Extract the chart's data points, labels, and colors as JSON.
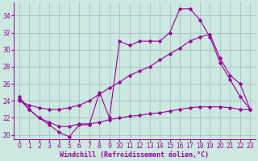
{
  "xlabel": "Windchill (Refroidissement éolien,°C)",
  "background_color": "#cce8e0",
  "line_color": "#990099",
  "grid_color": "#99bbbb",
  "xlim": [
    -0.5,
    23.5
  ],
  "ylim": [
    19.5,
    35.5
  ],
  "yticks": [
    20,
    22,
    24,
    26,
    28,
    30,
    32,
    34
  ],
  "xticks": [
    0,
    1,
    2,
    3,
    4,
    5,
    6,
    7,
    8,
    9,
    10,
    11,
    12,
    13,
    14,
    15,
    16,
    17,
    18,
    19,
    20,
    21,
    22,
    23
  ],
  "y_top": [
    24.5,
    23.0,
    22.0,
    21.2,
    20.3,
    19.8,
    21.2,
    21.2,
    25.0,
    22.0,
    31.0,
    30.5,
    31.0,
    31.0,
    31.0,
    32.0,
    34.8,
    34.8,
    33.5,
    31.5,
    28.5,
    26.5,
    24.5,
    23.0
  ],
  "y_mid": [
    24.0,
    23.5,
    23.2,
    23.0,
    23.0,
    23.2,
    23.5,
    24.0,
    24.8,
    25.5,
    26.2,
    27.0,
    27.5,
    28.0,
    28.8,
    29.5,
    30.2,
    31.0,
    31.5,
    31.8,
    29.0,
    27.0,
    26.0,
    23.0
  ],
  "y_bot": [
    24.2,
    23.0,
    22.0,
    21.5,
    21.0,
    21.0,
    21.3,
    21.3,
    21.5,
    21.8,
    22.0,
    22.2,
    22.3,
    22.5,
    22.6,
    22.8,
    23.0,
    23.2,
    23.3,
    23.3,
    23.3,
    23.2,
    23.0,
    23.0
  ],
  "xlabel_fontsize": 6,
  "tick_fontsize": 5.5
}
